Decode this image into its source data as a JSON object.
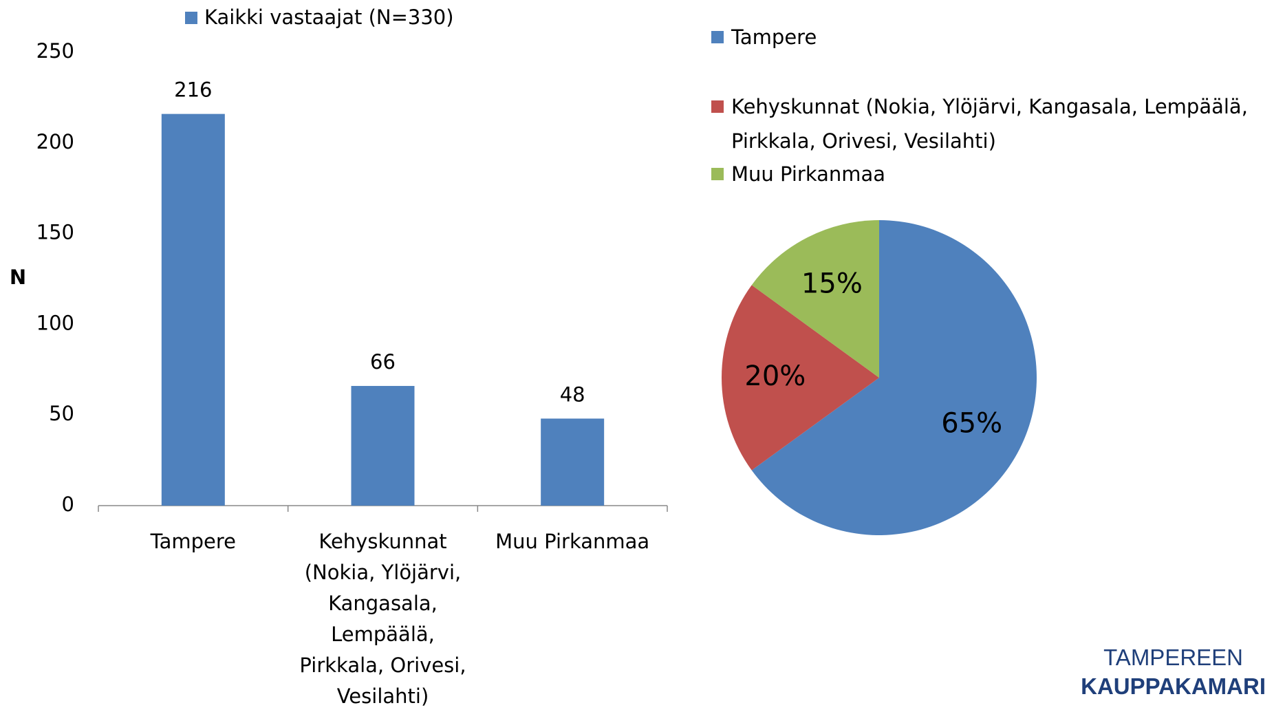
{
  "chart_data": [
    {
      "type": "bar",
      "categories": [
        "Tampere",
        "Kehyskunnat (Nokia, Ylöjärvi, Kangasala, Lempäälä, Pirkkala, Orivesi, Vesilahti)",
        "Muu Pirkanmaa"
      ],
      "series": [
        {
          "name": "Kaikki vastaajat (N=330)",
          "color": "#4f81bd",
          "values": [
            216,
            66,
            48
          ]
        }
      ],
      "y_label": "N",
      "ylim": [
        0,
        250
      ],
      "yticks": [
        0,
        50,
        100,
        150,
        200,
        250
      ],
      "data_labels": true,
      "legend": "top"
    },
    {
      "type": "pie",
      "categories": [
        "Tampere",
        "Kehyskunnat (Nokia, Ylöjärvi, Kangasala, Lempäälä, Pirkkala, Orivesi, Vesilahti)",
        "Muu Pirkanmaa"
      ],
      "values": [
        65,
        20,
        15
      ],
      "value_labels": [
        "65%",
        "20%",
        "15%"
      ],
      "colors": [
        "#4f81bd",
        "#c0504d",
        "#9bbb59"
      ],
      "legend": "top"
    }
  ],
  "logo": {
    "lines": [
      "TAMPEREEN",
      "KAUPPAKAMARI"
    ]
  }
}
